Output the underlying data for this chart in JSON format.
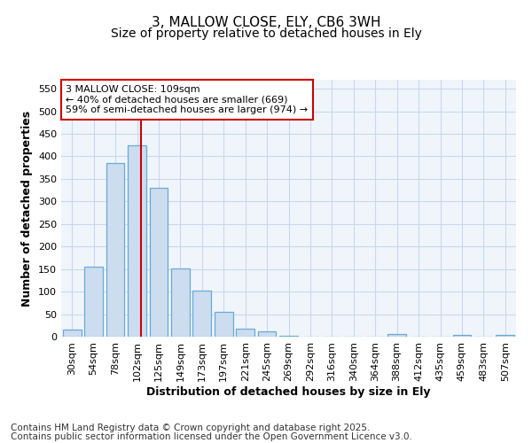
{
  "title_line1": "3, MALLOW CLOSE, ELY, CB6 3WH",
  "title_line2": "Size of property relative to detached houses in Ely",
  "xlabel": "Distribution of detached houses by size in Ely",
  "ylabel": "Number of detached properties",
  "bar_labels": [
    "30sqm",
    "54sqm",
    "78sqm",
    "102sqm",
    "125sqm",
    "149sqm",
    "173sqm",
    "197sqm",
    "221sqm",
    "245sqm",
    "269sqm",
    "292sqm",
    "316sqm",
    "340sqm",
    "364sqm",
    "388sqm",
    "412sqm",
    "435sqm",
    "459sqm",
    "483sqm",
    "507sqm"
  ],
  "bar_values": [
    15,
    155,
    385,
    425,
    330,
    152,
    102,
    55,
    18,
    11,
    2,
    0,
    0,
    0,
    0,
    5,
    0,
    0,
    3,
    0,
    3
  ],
  "bar_color": "#ccddf0",
  "bar_edgecolor": "#6aaad4",
  "vline_x": 3.2,
  "vline_color": "#cc0000",
  "annotation_text": "3 MALLOW CLOSE: 109sqm\n← 40% of detached houses are smaller (669)\n59% of semi-detached houses are larger (974) →",
  "annotation_box_color": "#ffffff",
  "annotation_box_edgecolor": "#cc0000",
  "ylim": [
    0,
    570
  ],
  "yticks": [
    0,
    50,
    100,
    150,
    200,
    250,
    300,
    350,
    400,
    450,
    500,
    550
  ],
  "background_color": "#ffffff",
  "plot_bg_color": "#f0f5fc",
  "grid_color": "#c8d8ee",
  "footer_line1": "Contains HM Land Registry data © Crown copyright and database right 2025.",
  "footer_line2": "Contains public sector information licensed under the Open Government Licence v3.0.",
  "title_fontsize": 11,
  "subtitle_fontsize": 10,
  "axis_label_fontsize": 9,
  "tick_fontsize": 8,
  "annotation_fontsize": 8,
  "footer_fontsize": 7.5
}
